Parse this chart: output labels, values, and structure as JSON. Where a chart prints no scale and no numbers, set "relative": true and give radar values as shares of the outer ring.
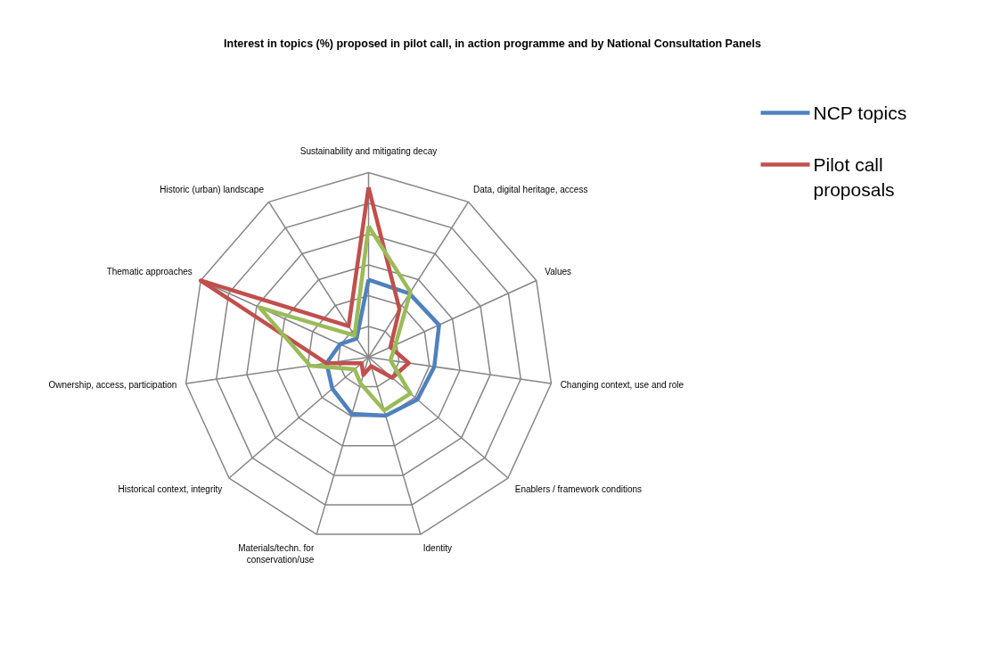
{
  "chart_data": {
    "type": "radar",
    "title": "Interest in topics (%) proposed in pilot call, in action programme and by National Consultation Panels",
    "categories": [
      "Sustainability and mitigating decay",
      "Data, digital heritage, access",
      "Values",
      "Changing context, use and role",
      "Enablers / framework conditions",
      "Identity",
      "Materials/techn. for conservation/use",
      "Historical context, integrity",
      "Ownership, access, participation",
      "Thematic approaches",
      "Historic (urban) landscape"
    ],
    "relative": true,
    "grid": true,
    "legend": "right",
    "line_style": "solid",
    "marker": "none",
    "series": [
      {
        "name": "NCP topics",
        "color": "#4f81bd",
        "values": [
          0.42,
          0.41,
          0.42,
          0.36,
          0.35,
          0.33,
          0.32,
          0.26,
          0.23,
          0.17,
          0.12
        ]
      },
      {
        "name": "Pilot call proposals",
        "color": "#c0504d",
        "values": [
          0.92,
          0.31,
          0.13,
          0.22,
          0.17,
          0.05,
          0.1,
          0.05,
          0.23,
          1.0,
          0.2
        ]
      },
      {
        "color": "#9bbb59",
        "values": [
          0.71,
          0.42,
          0.16,
          0.12,
          0.3,
          0.3,
          0.15,
          0.1,
          0.32,
          0.65,
          0.14
        ]
      }
    ]
  }
}
